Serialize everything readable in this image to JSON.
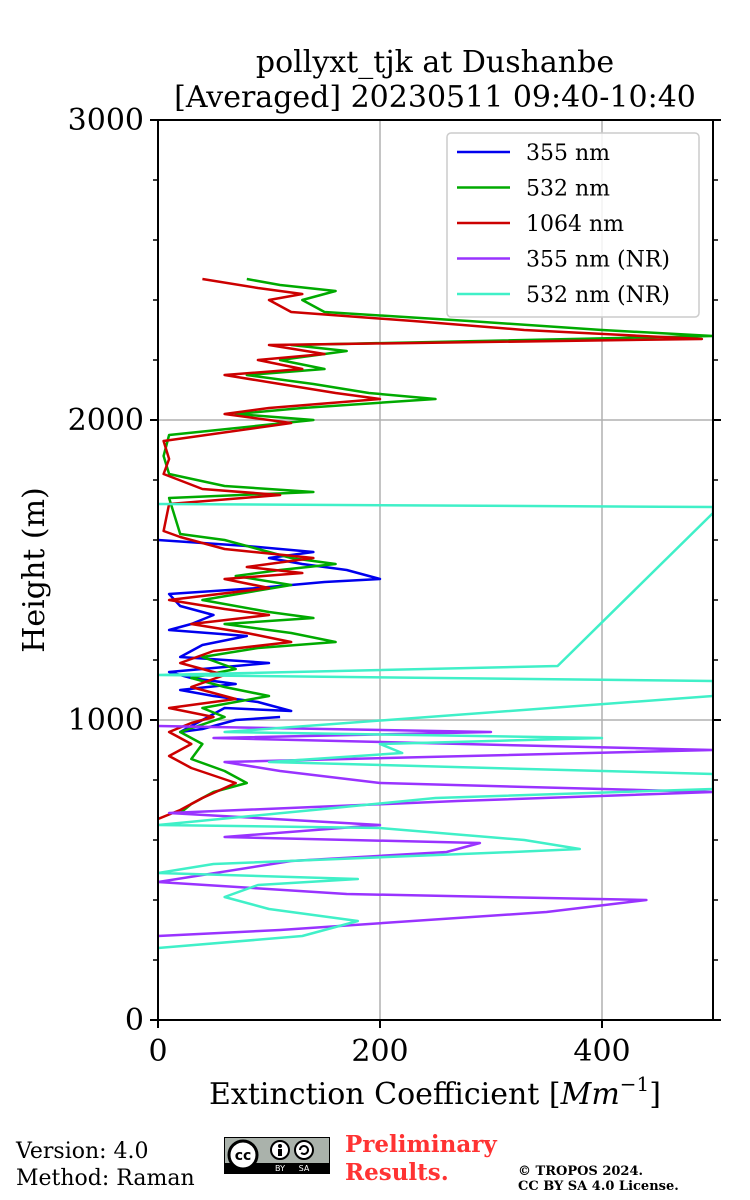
{
  "chart_data": {
    "type": "line",
    "title": "pollyxt_tjk at Dushanbe",
    "subtitle": "[Averaged] 20230511 09:40-10:40",
    "xlabel": "Extinction Coefficient [Mm⁻¹]",
    "xlabel_parts": {
      "text": "Extinction Coefficient [",
      "unit": "Mm",
      "exp": "−1",
      "close": "]"
    },
    "ylabel": "Height (m)",
    "xlim": [
      0,
      500
    ],
    "ylim": [
      0,
      3000
    ],
    "xticks": [
      0,
      200,
      400
    ],
    "yticks": [
      0,
      1000,
      2000,
      3000
    ],
    "x_tick_labels": [
      "0",
      "200",
      "400"
    ],
    "y_tick_labels": [
      "0",
      "1000",
      "2000",
      "3000"
    ],
    "grid": true,
    "legend_position": "top-right",
    "series": [
      {
        "name": "355 nm",
        "color": "#0000ee",
        "points": [
          [
            110,
            1010
          ],
          [
            70,
            1000
          ],
          [
            40,
            970
          ],
          [
            20,
            960
          ],
          [
            60,
            1040
          ],
          [
            120,
            1030
          ],
          [
            90,
            1060
          ],
          [
            50,
            1080
          ],
          [
            20,
            1100
          ],
          [
            70,
            1120
          ],
          [
            30,
            1140
          ],
          [
            10,
            1160
          ],
          [
            100,
            1190
          ],
          [
            20,
            1210
          ],
          [
            40,
            1250
          ],
          [
            80,
            1280
          ],
          [
            10,
            1300
          ],
          [
            30,
            1320
          ],
          [
            50,
            1350
          ],
          [
            20,
            1380
          ],
          [
            10,
            1420
          ],
          [
            90,
            1440
          ],
          [
            150,
            1460
          ],
          [
            200,
            1470
          ],
          [
            170,
            1500
          ],
          [
            130,
            1520
          ],
          [
            100,
            1540
          ],
          [
            140,
            1560
          ],
          [
            80,
            1580
          ],
          [
            0,
            1600
          ]
        ]
      },
      {
        "name": "532 nm",
        "color": "#00aa00",
        "points": [
          [
            20,
            690
          ],
          [
            30,
            720
          ],
          [
            50,
            760
          ],
          [
            80,
            790
          ],
          [
            60,
            830
          ],
          [
            30,
            870
          ],
          [
            40,
            920
          ],
          [
            20,
            960
          ],
          [
            60,
            1010
          ],
          [
            40,
            1040
          ],
          [
            100,
            1080
          ],
          [
            60,
            1110
          ],
          [
            30,
            1140
          ],
          [
            70,
            1170
          ],
          [
            40,
            1210
          ],
          [
            90,
            1240
          ],
          [
            160,
            1260
          ],
          [
            120,
            1290
          ],
          [
            60,
            1320
          ],
          [
            140,
            1340
          ],
          [
            100,
            1360
          ],
          [
            40,
            1400
          ],
          [
            120,
            1450
          ],
          [
            70,
            1480
          ],
          [
            110,
            1500
          ],
          [
            160,
            1520
          ],
          [
            120,
            1540
          ],
          [
            90,
            1570
          ],
          [
            60,
            1600
          ],
          [
            20,
            1620
          ],
          [
            10,
            1740
          ],
          [
            140,
            1760
          ],
          [
            60,
            1780
          ],
          [
            10,
            1820
          ],
          [
            5,
            1880
          ],
          [
            10,
            1950
          ],
          [
            140,
            2000
          ],
          [
            70,
            2020
          ],
          [
            130,
            2040
          ],
          [
            250,
            2070
          ],
          [
            190,
            2090
          ],
          [
            140,
            2120
          ],
          [
            80,
            2150
          ],
          [
            150,
            2170
          ],
          [
            110,
            2200
          ],
          [
            170,
            2230
          ],
          [
            120,
            2250
          ],
          [
            500,
            2280
          ],
          [
            400,
            2300
          ],
          [
            280,
            2330
          ],
          [
            150,
            2360
          ],
          [
            130,
            2400
          ],
          [
            160,
            2430
          ],
          [
            110,
            2450
          ],
          [
            80,
            2470
          ]
        ]
      },
      {
        "name": "1064 nm",
        "color": "#cc0000",
        "points": [
          [
            0,
            670
          ],
          [
            20,
            700
          ],
          [
            40,
            740
          ],
          [
            70,
            790
          ],
          [
            30,
            840
          ],
          [
            10,
            880
          ],
          [
            30,
            920
          ],
          [
            10,
            960
          ],
          [
            30,
            990
          ],
          [
            50,
            1010
          ],
          [
            10,
            1040
          ],
          [
            70,
            1070
          ],
          [
            30,
            1110
          ],
          [
            60,
            1150
          ],
          [
            20,
            1190
          ],
          [
            50,
            1230
          ],
          [
            120,
            1260
          ],
          [
            80,
            1290
          ],
          [
            30,
            1320
          ],
          [
            100,
            1350
          ],
          [
            60,
            1370
          ],
          [
            10,
            1400
          ],
          [
            100,
            1440
          ],
          [
            60,
            1470
          ],
          [
            130,
            1490
          ],
          [
            80,
            1510
          ],
          [
            140,
            1540
          ],
          [
            60,
            1570
          ],
          [
            20,
            1610
          ],
          [
            5,
            1630
          ],
          [
            10,
            1720
          ],
          [
            110,
            1750
          ],
          [
            40,
            1770
          ],
          [
            5,
            1820
          ],
          [
            10,
            1870
          ],
          [
            5,
            1930
          ],
          [
            120,
            1990
          ],
          [
            60,
            2020
          ],
          [
            100,
            2040
          ],
          [
            200,
            2070
          ],
          [
            160,
            2090
          ],
          [
            110,
            2120
          ],
          [
            60,
            2150
          ],
          [
            130,
            2170
          ],
          [
            90,
            2200
          ],
          [
            150,
            2220
          ],
          [
            100,
            2250
          ],
          [
            490,
            2270
          ],
          [
            330,
            2300
          ],
          [
            230,
            2330
          ],
          [
            120,
            2360
          ],
          [
            100,
            2400
          ],
          [
            130,
            2420
          ],
          [
            90,
            2440
          ],
          [
            40,
            2470
          ]
        ]
      },
      {
        "name": "355 nm (NR)",
        "color": "#9933ff",
        "points": [
          [
            0,
            280
          ],
          [
            110,
            300
          ],
          [
            350,
            360
          ],
          [
            440,
            400
          ],
          [
            170,
            420
          ],
          [
            0,
            460
          ],
          [
            120,
            530
          ],
          [
            260,
            560
          ],
          [
            290,
            590
          ],
          [
            60,
            610
          ],
          [
            200,
            650
          ],
          [
            10,
            690
          ],
          [
            270,
            730
          ],
          [
            500,
            760
          ],
          [
            200,
            790
          ],
          [
            110,
            830
          ],
          [
            60,
            860
          ],
          [
            500,
            900
          ],
          [
            50,
            940
          ],
          [
            300,
            960
          ],
          [
            0,
            980
          ]
        ]
      },
      {
        "name": "532 nm (NR)",
        "color": "#40f0c8",
        "points": [
          [
            0,
            240
          ],
          [
            130,
            280
          ],
          [
            160,
            310
          ],
          [
            180,
            330
          ],
          [
            100,
            370
          ],
          [
            60,
            410
          ],
          [
            90,
            450
          ],
          [
            180,
            470
          ],
          [
            0,
            490
          ],
          [
            50,
            520
          ],
          [
            320,
            560
          ],
          [
            380,
            570
          ],
          [
            330,
            600
          ],
          [
            200,
            640
          ],
          [
            0,
            650
          ],
          [
            140,
            700
          ],
          [
            250,
            740
          ],
          [
            500,
            770
          ],
          [
            500,
            820
          ],
          [
            100,
            860
          ],
          [
            220,
            890
          ],
          [
            200,
            920
          ],
          [
            400,
            940
          ],
          [
            60,
            960
          ],
          [
            500,
            1080
          ],
          [
            500,
            1100
          ],
          [
            500,
            1130
          ],
          [
            0,
            1150
          ],
          [
            360,
            1180
          ],
          [
            500,
            1690
          ],
          [
            500,
            1710
          ],
          [
            0,
            1720
          ]
        ]
      }
    ]
  },
  "footer": {
    "version": "Version: 4.0",
    "method": "Method: Raman",
    "preliminary_line1": "Preliminary",
    "preliminary_line2": "Results.",
    "copyright_line1": "© TROPOS 2024.",
    "copyright_line2": "CC BY SA 4.0 License.",
    "cc_label": "cc",
    "by_label": "BY",
    "sa_label": "SA"
  }
}
